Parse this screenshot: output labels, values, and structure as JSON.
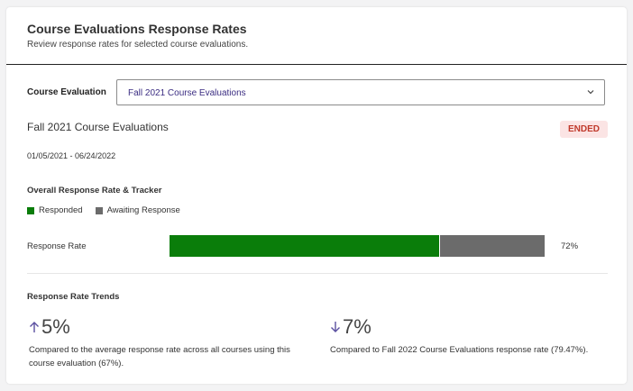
{
  "header": {
    "title": "Course Evaluations Response Rates",
    "subtitle": "Review response rates for selected course evaluations."
  },
  "selector": {
    "label": "Course Evaluation",
    "value": "Fall 2021 Course Evaluations"
  },
  "evaluation": {
    "name": "Fall 2021 Course Evaluations",
    "status": "ENDED",
    "dates": "01/05/2021 - 06/24/2022"
  },
  "tracker": {
    "title": "Overall Response Rate & Tracker",
    "legend": [
      {
        "label": "Responded",
        "color": "#0a7d0a"
      },
      {
        "label": "Awaiting Response",
        "color": "#6b6b6b"
      }
    ],
    "row_label": "Response Rate",
    "responded_fraction": 0.72,
    "percent_label": "72%"
  },
  "trends": {
    "title": "Response Rate Trends",
    "items": [
      {
        "direction": "up",
        "value": "5%",
        "description": "Compared to the average response rate across all courses using this course evaluation (67%)."
      },
      {
        "direction": "down",
        "value": "7%",
        "description": "Compared to Fall 2022 Course Evaluations response rate (79.47%)."
      }
    ]
  },
  "colors": {
    "accent": "#3b2d82",
    "responded": "#0a7d0a",
    "awaiting": "#6b6b6b",
    "badge_bg": "#fbe4e4",
    "badge_text": "#c0392b"
  }
}
